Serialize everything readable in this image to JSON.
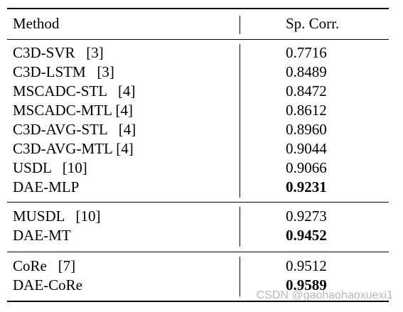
{
  "table": {
    "header": {
      "method": "Method",
      "value": "Sp. Corr."
    },
    "groups": [
      {
        "rows": [
          {
            "method": "C3D-SVR   [3]",
            "value": "0.7716",
            "bold": false
          },
          {
            "method": "C3D-LSTM   [3]",
            "value": "0.8489",
            "bold": false
          },
          {
            "method": "MSCADC-STL   [4]",
            "value": "0.8472",
            "bold": false
          },
          {
            "method": "MSCADC-MTL [4]",
            "value": "0.8612",
            "bold": false
          },
          {
            "method": "C3D-AVG-STL   [4]",
            "value": "0.8960",
            "bold": false
          },
          {
            "method": "C3D-AVG-MTL [4]",
            "value": "0.9044",
            "bold": false
          },
          {
            "method": "USDL   [10]",
            "value": "0.9066",
            "bold": false
          },
          {
            "method": "DAE-MLP",
            "value": "0.9231",
            "bold": true
          }
        ]
      },
      {
        "rows": [
          {
            "method": "MUSDL   [10]",
            "value": "0.9273",
            "bold": false
          },
          {
            "method": "DAE-MT",
            "value": "0.9452",
            "bold": true
          }
        ]
      },
      {
        "rows": [
          {
            "method": "CoRe   [7]",
            "value": "0.9512",
            "bold": false
          },
          {
            "method": "DAE-CoRe",
            "value": "0.9589",
            "bold": true
          }
        ]
      }
    ]
  },
  "watermark": "CSDN @gaohaohaoxuexi1"
}
